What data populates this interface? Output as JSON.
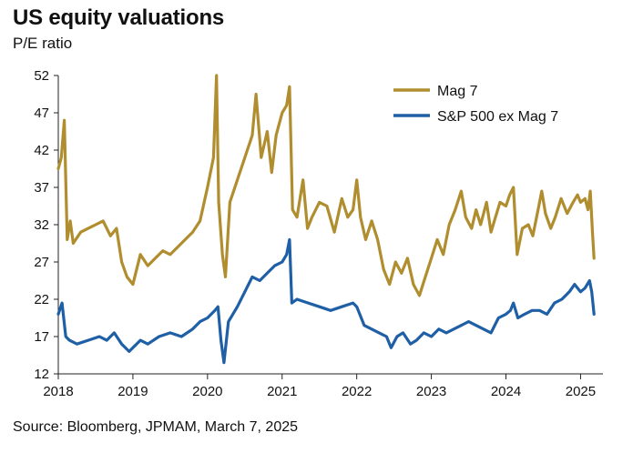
{
  "header": {
    "title": "US equity valuations",
    "subtitle": "P/E ratio"
  },
  "footer": {
    "source": "Source: Bloomberg, JPMAM, March 7, 2025"
  },
  "chart_data": {
    "type": "line",
    "title": "US equity valuations",
    "ylabel": "P/E ratio",
    "ylim": [
      12,
      52
    ],
    "xlim": [
      2018.0,
      2025.3
    ],
    "yticks": [
      52,
      47,
      42,
      37,
      32,
      27,
      22,
      17,
      12
    ],
    "xticks": [
      2018,
      2019,
      2020,
      2021,
      2022,
      2023,
      2024,
      2025
    ],
    "grid": false,
    "legend": "top-right",
    "series": [
      {
        "name": "Mag 7",
        "color": "#b08d2e",
        "points": [
          [
            2018.0,
            39.5
          ],
          [
            2018.04,
            41.0
          ],
          [
            2018.08,
            46.0
          ],
          [
            2018.12,
            30.0
          ],
          [
            2018.16,
            32.5
          ],
          [
            2018.2,
            29.5
          ],
          [
            2018.3,
            31.0
          ],
          [
            2018.4,
            31.5
          ],
          [
            2018.5,
            32.0
          ],
          [
            2018.6,
            32.5
          ],
          [
            2018.7,
            30.5
          ],
          [
            2018.78,
            31.5
          ],
          [
            2018.85,
            27.0
          ],
          [
            2018.92,
            25.0
          ],
          [
            2019.0,
            24.0
          ],
          [
            2019.05,
            26.0
          ],
          [
            2019.1,
            28.0
          ],
          [
            2019.2,
            26.5
          ],
          [
            2019.3,
            27.5
          ],
          [
            2019.4,
            28.5
          ],
          [
            2019.5,
            28.0
          ],
          [
            2019.6,
            29.0
          ],
          [
            2019.7,
            30.0
          ],
          [
            2019.8,
            31.0
          ],
          [
            2019.9,
            32.5
          ],
          [
            2020.0,
            37.0
          ],
          [
            2020.08,
            41.0
          ],
          [
            2020.12,
            52.0
          ],
          [
            2020.15,
            35.0
          ],
          [
            2020.2,
            28.0
          ],
          [
            2020.24,
            25.0
          ],
          [
            2020.3,
            35.0
          ],
          [
            2020.4,
            38.0
          ],
          [
            2020.5,
            41.0
          ],
          [
            2020.6,
            44.0
          ],
          [
            2020.65,
            49.5
          ],
          [
            2020.72,
            41.0
          ],
          [
            2020.8,
            44.5
          ],
          [
            2020.86,
            39.0
          ],
          [
            2020.92,
            44.0
          ],
          [
            2021.0,
            47.0
          ],
          [
            2021.06,
            48.0
          ],
          [
            2021.1,
            50.5
          ],
          [
            2021.14,
            34.0
          ],
          [
            2021.2,
            33.0
          ],
          [
            2021.28,
            38.0
          ],
          [
            2021.34,
            31.5
          ],
          [
            2021.4,
            33.0
          ],
          [
            2021.5,
            35.0
          ],
          [
            2021.6,
            34.5
          ],
          [
            2021.7,
            31.0
          ],
          [
            2021.8,
            35.5
          ],
          [
            2021.88,
            33.0
          ],
          [
            2021.95,
            34.0
          ],
          [
            2022.0,
            38.0
          ],
          [
            2022.05,
            33.0
          ],
          [
            2022.12,
            30.0
          ],
          [
            2022.2,
            32.5
          ],
          [
            2022.28,
            30.0
          ],
          [
            2022.36,
            26.0
          ],
          [
            2022.44,
            24.0
          ],
          [
            2022.52,
            27.0
          ],
          [
            2022.6,
            25.5
          ],
          [
            2022.68,
            27.5
          ],
          [
            2022.76,
            24.0
          ],
          [
            2022.84,
            22.5
          ],
          [
            2022.92,
            25.0
          ],
          [
            2023.0,
            27.5
          ],
          [
            2023.08,
            30.0
          ],
          [
            2023.16,
            28.0
          ],
          [
            2023.24,
            32.0
          ],
          [
            2023.32,
            34.0
          ],
          [
            2023.4,
            36.5
          ],
          [
            2023.46,
            33.0
          ],
          [
            2023.54,
            31.5
          ],
          [
            2023.6,
            34.0
          ],
          [
            2023.66,
            32.0
          ],
          [
            2023.74,
            35.0
          ],
          [
            2023.8,
            31.0
          ],
          [
            2023.86,
            33.0
          ],
          [
            2023.92,
            35.0
          ],
          [
            2024.0,
            34.5
          ],
          [
            2024.05,
            36.0
          ],
          [
            2024.1,
            37.0
          ],
          [
            2024.15,
            28.0
          ],
          [
            2024.22,
            31.5
          ],
          [
            2024.3,
            32.0
          ],
          [
            2024.36,
            30.5
          ],
          [
            2024.44,
            34.5
          ],
          [
            2024.48,
            36.5
          ],
          [
            2024.53,
            33.5
          ],
          [
            2024.6,
            31.5
          ],
          [
            2024.66,
            33.0
          ],
          [
            2024.74,
            35.5
          ],
          [
            2024.82,
            33.5
          ],
          [
            2024.9,
            35.0
          ],
          [
            2024.96,
            36.0
          ],
          [
            2025.0,
            35.0
          ],
          [
            2025.06,
            35.5
          ],
          [
            2025.1,
            34.0
          ],
          [
            2025.13,
            36.5
          ],
          [
            2025.16,
            31.0
          ],
          [
            2025.18,
            27.5
          ]
        ]
      },
      {
        "name": "S&P 500 ex Mag 7",
        "color": "#1f5fa6",
        "points": [
          [
            2018.0,
            20.0
          ],
          [
            2018.05,
            21.5
          ],
          [
            2018.1,
            17.0
          ],
          [
            2018.15,
            16.5
          ],
          [
            2018.25,
            16.0
          ],
          [
            2018.4,
            16.5
          ],
          [
            2018.55,
            17.0
          ],
          [
            2018.65,
            16.5
          ],
          [
            2018.75,
            17.5
          ],
          [
            2018.85,
            16.0
          ],
          [
            2018.95,
            15.0
          ],
          [
            2019.0,
            15.5
          ],
          [
            2019.1,
            16.5
          ],
          [
            2019.2,
            16.0
          ],
          [
            2019.35,
            17.0
          ],
          [
            2019.5,
            17.5
          ],
          [
            2019.65,
            17.0
          ],
          [
            2019.8,
            18.0
          ],
          [
            2019.9,
            19.0
          ],
          [
            2020.0,
            19.5
          ],
          [
            2020.1,
            20.5
          ],
          [
            2020.14,
            21.0
          ],
          [
            2020.18,
            16.5
          ],
          [
            2020.22,
            13.5
          ],
          [
            2020.28,
            19.0
          ],
          [
            2020.4,
            21.0
          ],
          [
            2020.5,
            23.0
          ],
          [
            2020.6,
            25.0
          ],
          [
            2020.7,
            24.5
          ],
          [
            2020.8,
            25.5
          ],
          [
            2020.9,
            26.5
          ],
          [
            2021.0,
            27.0
          ],
          [
            2021.06,
            28.0
          ],
          [
            2021.1,
            30.0
          ],
          [
            2021.13,
            21.5
          ],
          [
            2021.2,
            22.0
          ],
          [
            2021.35,
            21.5
          ],
          [
            2021.5,
            21.0
          ],
          [
            2021.65,
            20.5
          ],
          [
            2021.8,
            21.0
          ],
          [
            2021.95,
            21.5
          ],
          [
            2022.0,
            21.0
          ],
          [
            2022.1,
            18.5
          ],
          [
            2022.2,
            18.0
          ],
          [
            2022.3,
            17.5
          ],
          [
            2022.4,
            17.0
          ],
          [
            2022.46,
            15.5
          ],
          [
            2022.54,
            17.0
          ],
          [
            2022.62,
            17.5
          ],
          [
            2022.72,
            16.0
          ],
          [
            2022.8,
            16.5
          ],
          [
            2022.9,
            17.5
          ],
          [
            2023.0,
            17.0
          ],
          [
            2023.1,
            18.0
          ],
          [
            2023.2,
            17.5
          ],
          [
            2023.3,
            18.0
          ],
          [
            2023.4,
            18.5
          ],
          [
            2023.5,
            19.0
          ],
          [
            2023.6,
            18.5
          ],
          [
            2023.7,
            18.0
          ],
          [
            2023.8,
            17.5
          ],
          [
            2023.9,
            19.5
          ],
          [
            2024.0,
            20.0
          ],
          [
            2024.06,
            20.5
          ],
          [
            2024.1,
            21.5
          ],
          [
            2024.16,
            19.5
          ],
          [
            2024.25,
            20.0
          ],
          [
            2024.35,
            20.5
          ],
          [
            2024.45,
            20.5
          ],
          [
            2024.55,
            20.0
          ],
          [
            2024.65,
            21.5
          ],
          [
            2024.75,
            22.0
          ],
          [
            2024.85,
            23.0
          ],
          [
            2024.92,
            24.0
          ],
          [
            2025.0,
            23.0
          ],
          [
            2025.06,
            23.5
          ],
          [
            2025.12,
            24.5
          ],
          [
            2025.15,
            23.0
          ],
          [
            2025.18,
            20.0
          ]
        ]
      }
    ]
  }
}
